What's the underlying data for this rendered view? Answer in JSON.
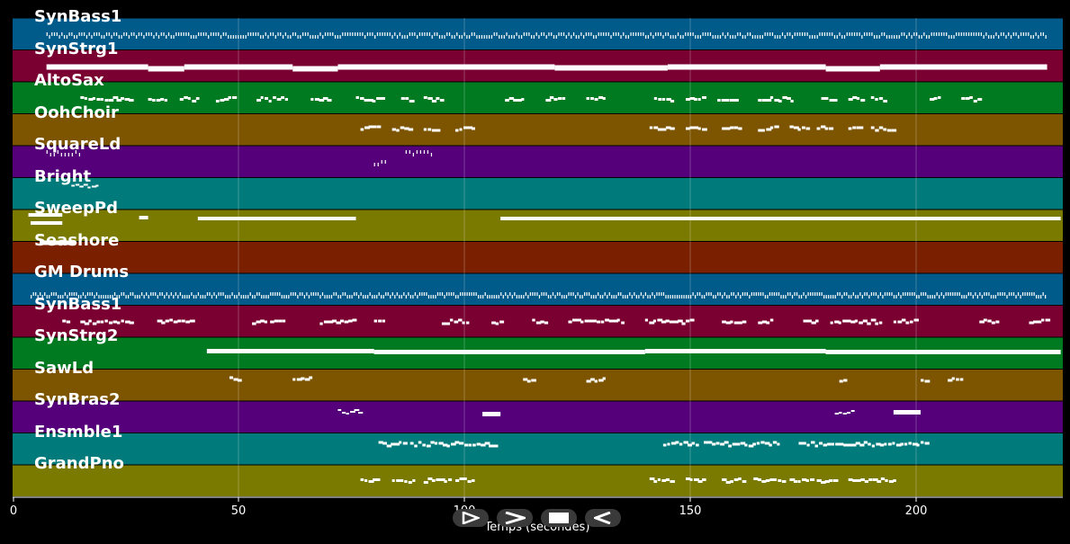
{
  "axis": {
    "xlabel": "Temps (secondes)",
    "ticks": [
      "0",
      "50",
      "100",
      "150",
      "200"
    ]
  },
  "tracks": [
    {
      "name": "SynBass1",
      "color": "#005a8a"
    },
    {
      "name": "SynStrg1",
      "color": "#7a0032"
    },
    {
      "name": "AltoSax",
      "color": "#007a20"
    },
    {
      "name": "OohChoir",
      "color": "#7d5400"
    },
    {
      "name": "SquareLd",
      "color": "#55007a"
    },
    {
      "name": "Bright",
      "color": "#007a7a"
    },
    {
      "name": "SweepPd",
      "color": "#7a7a00"
    },
    {
      "name": "Seashore",
      "color": "#7a2000"
    },
    {
      "name": "GM Drums",
      "color": "#005a8a"
    },
    {
      "name": "SynBass1",
      "color": "#7a0032"
    },
    {
      "name": "SynStrg2",
      "color": "#007a20"
    },
    {
      "name": "SawLd",
      "color": "#7d5400"
    },
    {
      "name": "SynBras2",
      "color": "#55007a"
    },
    {
      "name": "Ensmble1",
      "color": "#007a7a"
    },
    {
      "name": "GrandPno",
      "color": "#7a7a00"
    }
  ],
  "controls": [
    {
      "icon": "play-outline-icon"
    },
    {
      "icon": "forward-icon"
    },
    {
      "icon": "stop-icon"
    },
    {
      "icon": "rewind-icon"
    }
  ]
}
